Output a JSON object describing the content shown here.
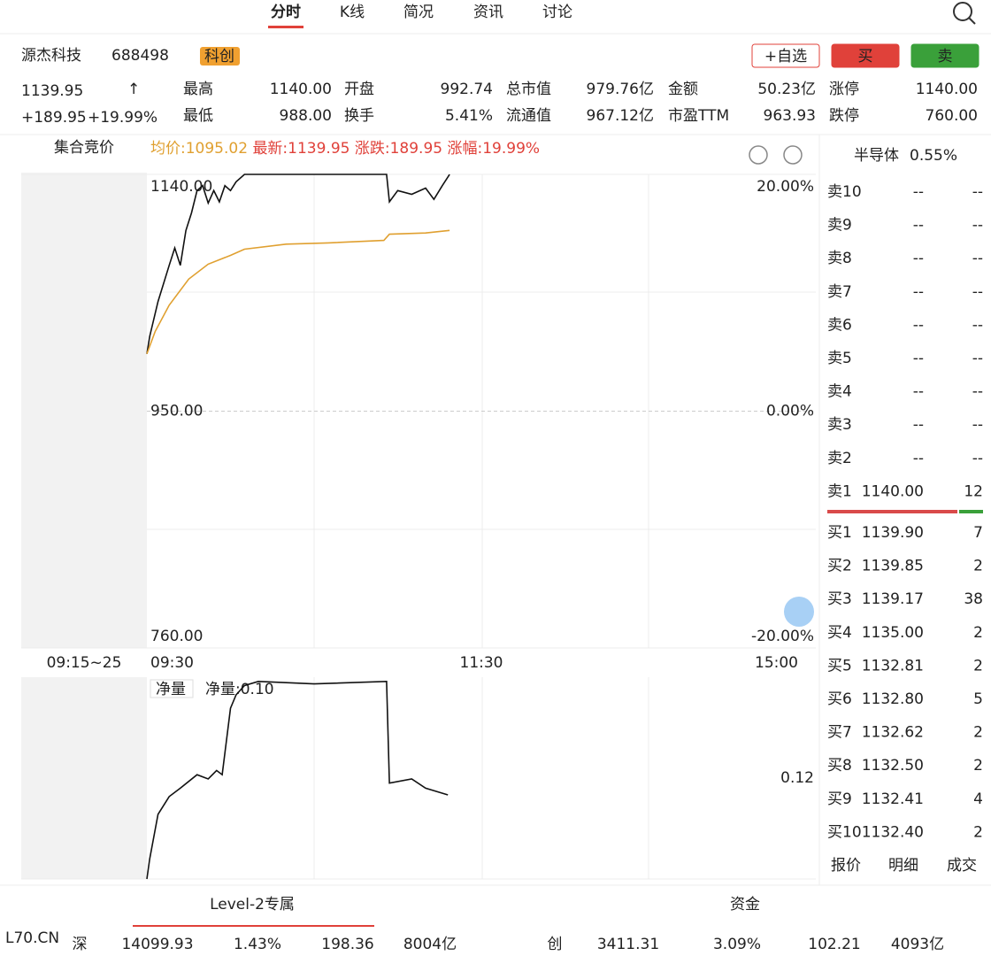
{
  "tabs": [
    "分时",
    "K线",
    "简况",
    "资讯",
    "讨论"
  ],
  "stock": {
    "name": "源杰科技",
    "code": "688498",
    "board": "科创",
    "price": "1139.95",
    "arrow": "↑",
    "change": "+189.95",
    "change_pct": "+19.99%"
  },
  "actions": [
    "+自选",
    "买",
    "卖"
  ],
  "stats": [
    [
      [
        "最高",
        "1140.00"
      ],
      [
        "开盘",
        "992.74"
      ],
      [
        "总市值",
        "979.76亿"
      ],
      [
        "金额",
        "50.23亿"
      ],
      [
        "涨停",
        "1140.00"
      ]
    ],
    [
      [
        "最低",
        "988.00"
      ],
      [
        "换手",
        "5.41%"
      ],
      [
        "流通值",
        "967.12亿"
      ],
      [
        "市盈TTM",
        "963.93"
      ],
      [
        "跌停",
        "760.00"
      ]
    ]
  ],
  "chart_data": [
    {
      "type": "line",
      "mode_label": "集合竞价",
      "info": [
        "均价:1095.02",
        "最新:1139.95",
        "涨跌:189.95",
        "涨幅:19.99%"
      ],
      "auction_label": "09:15~25",
      "xlim": [
        0,
        240
      ],
      "xticks": [
        {
          "value": 0,
          "label": "09:30"
        },
        {
          "value": 120,
          "label": "11:30"
        },
        {
          "value": 240,
          "label": "15:00"
        }
      ],
      "ylim": [
        760,
        1140
      ],
      "yticks": [
        {
          "value": 1140,
          "label": "1140.00"
        },
        {
          "value": 950,
          "label": "950.00"
        },
        {
          "value": 760,
          "label": "760.00"
        }
      ],
      "y2lim": [
        -20,
        20
      ],
      "y2ticks": [
        {
          "value": 20,
          "label": "20.00%"
        },
        {
          "value": 0,
          "label": "0.00%"
        },
        {
          "value": -20,
          "label": "-20.00%"
        }
      ],
      "series": [
        {
          "name": "最新",
          "color": "#111111",
          "x": [
            0,
            1,
            4,
            8,
            10,
            12,
            14,
            16,
            18,
            20,
            22,
            24,
            26,
            28,
            30,
            32,
            35,
            86,
            87,
            90,
            95,
            100,
            103,
            106,
            108.6
          ],
          "values": [
            996,
            1010,
            1038,
            1067,
            1081,
            1067,
            1095,
            1109,
            1127,
            1131,
            1117,
            1127,
            1118,
            1131,
            1127,
            1134,
            1140,
            1140,
            1118,
            1127,
            1124,
            1129,
            1120,
            1131,
            1139.95
          ]
        },
        {
          "name": "均价",
          "color": "#e0a030",
          "x": [
            0,
            3,
            8,
            15,
            22,
            30,
            35,
            50,
            65,
            85,
            87,
            100,
            108.6
          ],
          "values": [
            996,
            1014,
            1035,
            1056,
            1068,
            1075,
            1080,
            1084,
            1085,
            1087,
            1092,
            1093,
            1095.02
          ]
        }
      ]
    },
    {
      "type": "line",
      "label": "净量",
      "value_label": "净量:0.10",
      "xlim": [
        0,
        240
      ],
      "ylim": [
        0,
        0.24
      ],
      "yticks": [
        0.12
      ],
      "series": [
        {
          "name": "净量",
          "color": "#111111",
          "x": [
            0,
            1,
            4,
            8,
            12,
            18,
            22,
            25,
            27,
            30,
            32,
            35,
            40,
            60,
            86,
            87,
            95,
            100,
            108
          ],
          "values": [
            0,
            0.024,
            0.077,
            0.098,
            0.108,
            0.124,
            0.119,
            0.129,
            0.124,
            0.203,
            0.219,
            0.23,
            0.235,
            0.232,
            0.235,
            0.114,
            0.119,
            0.108,
            0.1
          ]
        }
      ]
    }
  ],
  "sector": {
    "name": "半导体",
    "change": "0.55%"
  },
  "order_book": {
    "asks": [
      [
        "卖10",
        "--",
        "--"
      ],
      [
        "卖9",
        "--",
        "--"
      ],
      [
        "卖8",
        "--",
        "--"
      ],
      [
        "卖7",
        "--",
        "--"
      ],
      [
        "卖6",
        "--",
        "--"
      ],
      [
        "卖5",
        "--",
        "--"
      ],
      [
        "卖4",
        "--",
        "--"
      ],
      [
        "卖3",
        "--",
        "--"
      ],
      [
        "卖2",
        "--",
        "--"
      ],
      [
        "卖1",
        "1140.00",
        "12"
      ]
    ],
    "bids": [
      [
        "买1",
        "1139.90",
        "7"
      ],
      [
        "买2",
        "1139.85",
        "2"
      ],
      [
        "买3",
        "1139.17",
        "38"
      ],
      [
        "买4",
        "1135.00",
        "2"
      ],
      [
        "买5",
        "1132.81",
        "2"
      ],
      [
        "买6",
        "1132.80",
        "5"
      ],
      [
        "买7",
        "1132.62",
        "2"
      ],
      [
        "买8",
        "1132.50",
        "2"
      ],
      [
        "买9",
        "1132.41",
        "4"
      ],
      [
        "买10",
        "1132.40",
        "2"
      ]
    ]
  },
  "quote_tabs": [
    "报价",
    "明细",
    "成交"
  ],
  "bottom_tabs": [
    "Level-2专属",
    "资金"
  ],
  "indices": [
    [
      "深",
      "14099.93",
      "1.43%",
      "198.36",
      "8004亿"
    ],
    [
      "创",
      "3411.31",
      "3.09%",
      "102.21",
      "4093亿"
    ]
  ],
  "watermark": "L70.CN"
}
